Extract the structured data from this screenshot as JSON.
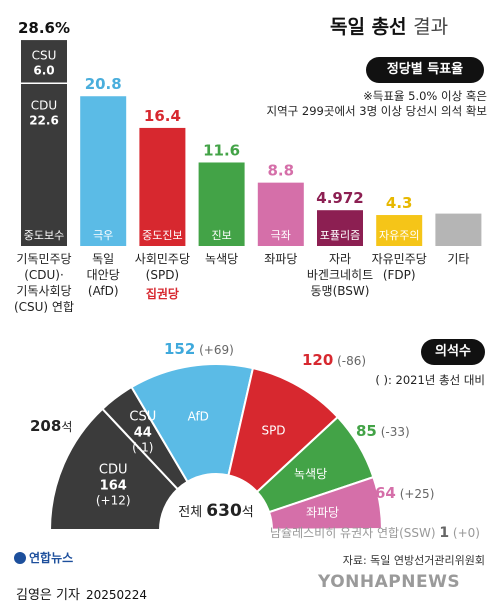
{
  "title": {
    "main": "독일 총선",
    "sub": "결과"
  },
  "section1_label": "정당별 득표율",
  "note_lines": [
    "※득표율 5.0% 이상 혹은",
    "지역구 299곳에서 3명 이상 당선시 의석 확보"
  ],
  "section2_label": "의석수",
  "seats_note": "( ): 2021년 총선 대비",
  "colors": {
    "cdu": "#3b3b3b",
    "afd": "#5bbbe6",
    "spd": "#d7282f",
    "green": "#43a347",
    "left": "#d56fa9",
    "bsw": "#8c1f52",
    "fdp": "#f5c518",
    "other": "#b5b5b5"
  },
  "chart_data": [
    {
      "type": "bar",
      "ylim": [
        0,
        30
      ],
      "bars": [
        {
          "id": "cdu",
          "value": 28.6,
          "value_label": "28.6%",
          "tag": "중도보수",
          "color": "#3b3b3b",
          "label_color": "#111111",
          "name_lines": [
            "기독민주당",
            "(CDU)·",
            "기독사회당",
            "(CSU) 연합"
          ],
          "stack": [
            {
              "name": "CSU",
              "value_label": "6.0",
              "value": 6.0,
              "color": "#3b3b3b"
            },
            {
              "name": "CDU",
              "value_label": "22.6",
              "value": 22.6,
              "color": "#3b3b3b"
            }
          ]
        },
        {
          "id": "afd",
          "value": 20.8,
          "value_label": "20.8",
          "tag": "극우",
          "color": "#5bbbe6",
          "label_color": "#4aaedc",
          "name_lines": [
            "독일",
            "대안당",
            "(AfD)"
          ]
        },
        {
          "id": "spd",
          "value": 16.4,
          "value_label": "16.4",
          "tag": "중도진보",
          "color": "#d7282f",
          "label_color": "#d7282f",
          "name_lines": [
            "사회민주당",
            "(SPD)"
          ],
          "extra": "집권당"
        },
        {
          "id": "green",
          "value": 11.6,
          "value_label": "11.6",
          "tag": "진보",
          "color": "#43a347",
          "label_color": "#43a347",
          "name_lines": [
            "녹색당"
          ]
        },
        {
          "id": "left",
          "value": 8.8,
          "value_label": "8.8",
          "tag": "극좌",
          "color": "#d56fa9",
          "label_color": "#d56fa9",
          "name_lines": [
            "좌파당"
          ]
        },
        {
          "id": "bsw",
          "value": 4.972,
          "value_label": "4.972",
          "tag": "포퓰리즘",
          "color": "#8c1f52",
          "label_color": "#8c1f52",
          "name_lines": [
            "자라",
            "바겐크네히트",
            "동맹(BSW)"
          ]
        },
        {
          "id": "fdp",
          "value": 4.3,
          "value_label": "4.3",
          "tag": "자유주의",
          "color": "#f5c518",
          "label_color": "#e7b800",
          "name_lines": [
            "자유민주당",
            "(FDP)"
          ]
        },
        {
          "id": "other",
          "value": 4.5,
          "value_label": "",
          "tag": "",
          "color": "#b5b5b5",
          "label_color": "#888888",
          "name_lines": [
            "기타"
          ]
        }
      ]
    },
    {
      "type": "pie",
      "subtype": "semicircle",
      "total": 630,
      "total_label_prefix": "전체",
      "total_label_value": "630",
      "total_label_unit": "석",
      "group_label": {
        "value": "208",
        "unit": "석"
      },
      "slices": [
        {
          "id": "cdu",
          "name": "CDU",
          "value": 164,
          "change": "+12",
          "color": "#3b3b3b"
        },
        {
          "id": "csu",
          "name": "CSU",
          "value": 44,
          "change": "-1",
          "color": "#3b3b3b"
        },
        {
          "id": "afd",
          "name": "AfD",
          "value": 152,
          "change": "+69",
          "color": "#5bbbe6"
        },
        {
          "id": "spd",
          "name": "SPD",
          "value": 120,
          "change": "-86",
          "color": "#d7282f"
        },
        {
          "id": "green",
          "name": "녹색당",
          "value": 85,
          "change": "-33",
          "color": "#43a347"
        },
        {
          "id": "left",
          "name": "좌파당",
          "value": 64,
          "change": "+25",
          "color": "#d56fa9"
        },
        {
          "id": "ssw",
          "name": "남슐레스비히 유권자 연합(SSW)",
          "value": 1,
          "change": "+0",
          "color": "#bbbbbb"
        }
      ]
    }
  ],
  "logo": "연합뉴스",
  "source": "자료: 독일 연방선거관리위원회",
  "credit": {
    "author": "김영은 기자",
    "date": "20250224"
  },
  "watermark": "YONHAPNEWS"
}
